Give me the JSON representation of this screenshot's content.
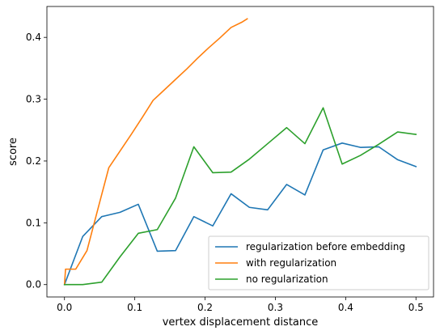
{
  "chart_data": {
    "type": "line",
    "title": "",
    "xlabel": "vertex displacement distance",
    "ylabel": "score",
    "xlim": [
      -0.025,
      0.525
    ],
    "ylim": [
      -0.02,
      0.45
    ],
    "xticks": [
      0.0,
      0.1,
      0.2,
      0.3,
      0.4,
      0.5
    ],
    "xtick_labels": [
      "0.0",
      "0.1",
      "0.2",
      "0.3",
      "0.4",
      "0.5"
    ],
    "yticks": [
      0.0,
      0.1,
      0.2,
      0.3,
      0.4
    ],
    "ytick_labels": [
      "0.0",
      "0.1",
      "0.2",
      "0.3",
      "0.4"
    ],
    "grid": false,
    "legend_position": "lower-right",
    "series": [
      {
        "name": "regularization before embedding",
        "color": "#1f77b4",
        "x": [
          0.0,
          0.026,
          0.053,
          0.079,
          0.105,
          0.132,
          0.158,
          0.184,
          0.211,
          0.237,
          0.263,
          0.289,
          0.316,
          0.342,
          0.368,
          0.395,
          0.421,
          0.447,
          0.474,
          0.5
        ],
        "y": [
          0.0,
          0.078,
          0.11,
          0.117,
          0.13,
          0.054,
          0.055,
          0.11,
          0.095,
          0.147,
          0.125,
          0.121,
          0.162,
          0.145,
          0.218,
          0.229,
          0.222,
          0.223,
          0.202,
          0.191
        ]
      },
      {
        "name": "with regularization",
        "color": "#ff7f0e",
        "x": [
          0.0,
          0.0015,
          0.016,
          0.032,
          0.047,
          0.063,
          0.079,
          0.095,
          0.111,
          0.126,
          0.142,
          0.158,
          0.174,
          0.189,
          0.205,
          0.221,
          0.237,
          0.253,
          0.26
        ],
        "y": [
          0.0,
          0.025,
          0.025,
          0.055,
          0.12,
          0.189,
          0.216,
          0.243,
          0.271,
          0.298,
          0.315,
          0.332,
          0.349,
          0.366,
          0.383,
          0.399,
          0.416,
          0.425,
          0.43
        ]
      },
      {
        "name": "no regularization",
        "color": "#2ca02c",
        "x": [
          0.0,
          0.026,
          0.053,
          0.079,
          0.105,
          0.132,
          0.158,
          0.184,
          0.211,
          0.237,
          0.263,
          0.289,
          0.316,
          0.342,
          0.368,
          0.395,
          0.421,
          0.447,
          0.474,
          0.5
        ],
        "y": [
          0.0,
          0.0,
          0.004,
          0.045,
          0.083,
          0.089,
          0.14,
          0.223,
          0.181,
          0.182,
          0.203,
          0.228,
          0.254,
          0.228,
          0.286,
          0.195,
          0.209,
          0.227,
          0.247,
          0.243
        ]
      }
    ]
  }
}
